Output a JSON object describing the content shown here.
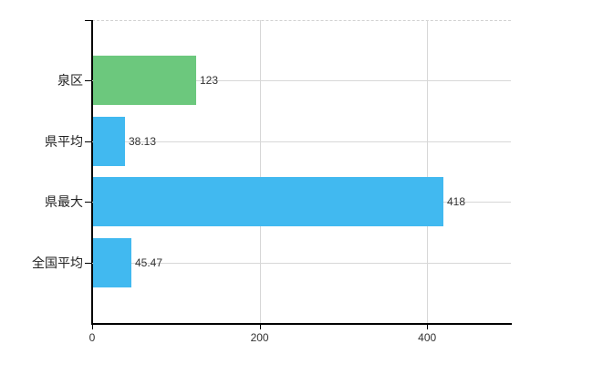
{
  "chart": {
    "background_color": "#ffffff",
    "axis_color": "#000000",
    "gridline_color": "#d7d7d7",
    "top_border_color": "#d2d2d2",
    "text_color": "#333333"
  },
  "chart_data": {
    "type": "bar",
    "orientation": "horizontal",
    "title": "",
    "xlabel": "",
    "ylabel": "",
    "categories": [
      "泉区",
      "県平均",
      "県最大",
      "全国平均"
    ],
    "values": [
      123,
      38.13,
      418,
      45.47
    ],
    "value_labels": [
      "123",
      "38.13",
      "418",
      "45.47"
    ],
    "bar_colors": [
      "#6cc87d",
      "#41b9f0",
      "#41b9f0",
      "#41b9f0"
    ],
    "x_ticks": [
      0,
      200,
      400
    ],
    "x_tick_labels": [
      "0",
      "200",
      "400"
    ],
    "xlim": [
      0,
      500
    ],
    "grid": true,
    "legend": false
  }
}
